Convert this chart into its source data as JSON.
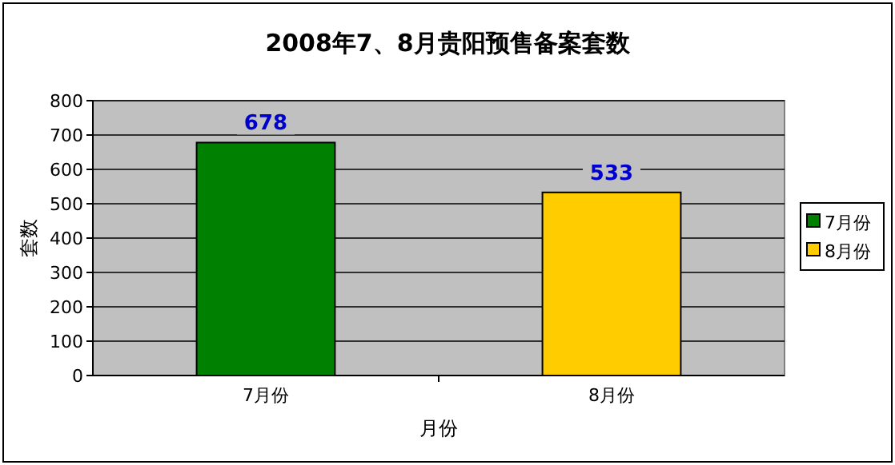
{
  "chart_data": {
    "type": "bar",
    "title": "2008年7、8月贵阳预售备案套数",
    "xlabel": "月份",
    "ylabel": "套数",
    "categories": [
      "7月份",
      "8月份"
    ],
    "series": [
      {
        "name": "7月份",
        "color": "#008000",
        "values": [
          678,
          null
        ]
      },
      {
        "name": "8月份",
        "color": "#ffcc00",
        "values": [
          null,
          533
        ]
      }
    ],
    "ylim": [
      0,
      800
    ],
    "yticks": [
      0,
      100,
      200,
      300,
      400,
      500,
      600,
      700,
      800
    ],
    "grid": "y",
    "legend": "right",
    "data_labels": true
  }
}
